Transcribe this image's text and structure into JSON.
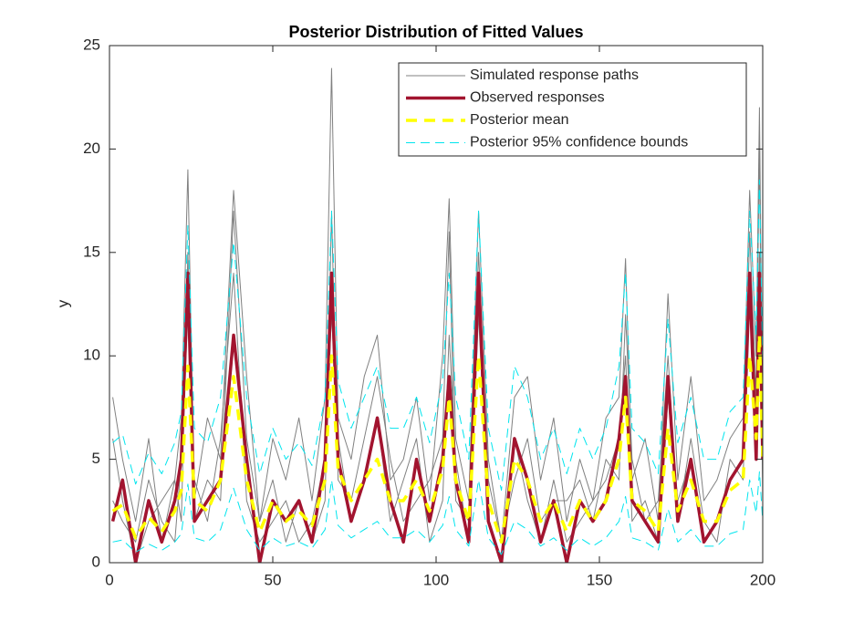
{
  "chart_data": {
    "type": "line",
    "title": "Posterior Distribution of Fitted Values",
    "ylabel": "y",
    "x": [
      1,
      4,
      8,
      12,
      16,
      20,
      22,
      24,
      26,
      30,
      34,
      38,
      42,
      46,
      50,
      54,
      58,
      62,
      66,
      68,
      70,
      74,
      78,
      82,
      86,
      90,
      94,
      98,
      102,
      104,
      106,
      110,
      113,
      116,
      120,
      124,
      128,
      132,
      136,
      140,
      144,
      148,
      152,
      156,
      158,
      160,
      164,
      168,
      171,
      174,
      178,
      182,
      186,
      190,
      194,
      196,
      198,
      199,
      200
    ],
    "series": [
      {
        "name": "Simulated response paths",
        "color": "#808080",
        "width": 1,
        "values": [
          [
            8,
            5,
            2,
            6,
            1,
            4,
            7,
            19,
            3,
            7,
            5,
            18,
            9,
            2,
            6,
            4,
            7,
            3,
            8,
            23.9,
            7,
            5,
            9,
            11,
            4,
            5,
            8,
            3,
            10,
            17.6,
            6,
            3,
            17,
            5,
            1,
            8,
            9,
            4,
            7,
            2,
            5,
            3,
            7,
            8,
            14.7,
            4,
            6,
            2,
            13,
            4,
            9,
            3,
            4,
            6,
            7,
            18,
            10,
            22,
            6
          ],
          [
            3,
            2,
            1,
            4,
            2,
            1,
            5,
            12,
            4,
            2,
            6,
            14,
            3,
            1,
            2,
            3,
            1,
            2,
            5,
            12,
            6,
            2,
            4,
            7,
            2,
            4,
            6,
            1,
            3,
            11,
            5,
            1,
            12,
            2,
            0,
            6,
            3,
            1,
            4,
            1,
            2,
            3,
            4,
            6,
            10,
            2,
            3,
            1,
            8,
            3,
            5,
            1,
            2,
            4,
            5,
            13,
            7,
            15,
            4
          ],
          [
            6,
            3,
            0,
            2,
            3,
            4,
            2,
            15,
            2,
            4,
            3,
            17,
            6,
            2,
            4,
            1,
            3,
            1,
            3,
            17,
            4,
            3,
            6,
            9,
            5,
            2,
            3,
            4,
            6,
            16,
            3,
            2,
            15,
            4,
            1,
            4,
            6,
            2,
            3,
            3,
            4,
            2,
            5,
            4,
            12,
            5,
            2,
            3,
            10,
            2,
            6,
            2,
            1,
            5,
            4,
            16,
            8,
            20,
            3
          ]
        ]
      },
      {
        "name": "Observed responses",
        "color": "#a2142f",
        "width": 3.5,
        "values": [
          2,
          4,
          0,
          3,
          1,
          3,
          5,
          14,
          2,
          3,
          4,
          11,
          5,
          0,
          3,
          2,
          3,
          1,
          5,
          14,
          5,
          2,
          4,
          7,
          3,
          1,
          5,
          2,
          5,
          9,
          4,
          1,
          14,
          2,
          0,
          6,
          4,
          1,
          3,
          0,
          3,
          2,
          3,
          6,
          9,
          3,
          2,
          1,
          9,
          2,
          5,
          1,
          2,
          4,
          5,
          14,
          5,
          14,
          5
        ]
      },
      {
        "name": "Posterior mean",
        "color": "#ffff00",
        "width": 3.5,
        "dash": "12 8",
        "values": [
          2.5,
          2.8,
          1.2,
          2.2,
          1.5,
          2.5,
          3.5,
          9.5,
          3,
          2.5,
          4,
          9,
          4,
          1.5,
          3,
          2,
          2.5,
          1.8,
          4,
          10,
          4.5,
          3,
          4,
          5,
          3,
          3,
          4,
          2.5,
          4.5,
          8,
          4,
          2,
          10,
          3,
          1,
          5,
          4,
          2,
          3,
          1.5,
          3,
          2,
          3,
          5,
          8,
          3,
          2.5,
          1.5,
          6.5,
          2.5,
          4,
          2,
          2,
          3.5,
          4,
          10,
          6,
          11,
          5
        ]
      },
      {
        "name": "Posterior 95% confidence bounds",
        "color": "#00e5ee",
        "width": 1,
        "dash": "10 6",
        "values": [
          [
            1,
            1.1,
            0.5,
            0.9,
            0.6,
            1,
            1.4,
            3.8,
            1.2,
            1,
            1.6,
            3.6,
            1.6,
            0.6,
            1.2,
            0.8,
            1,
            0.7,
            1.6,
            4,
            1.8,
            1.2,
            1.6,
            2,
            1.2,
            1.2,
            1.6,
            1,
            1.8,
            3.2,
            1.6,
            0.8,
            4,
            1.2,
            0.4,
            2,
            1.6,
            0.8,
            1.2,
            0.6,
            1.2,
            0.8,
            1.2,
            2,
            3.2,
            1.2,
            1,
            0.6,
            2.6,
            1,
            1.6,
            0.8,
            0.8,
            1.4,
            1.6,
            4,
            2.4,
            4.4,
            2
          ],
          [
            5.8,
            6.2,
            3.8,
            5.3,
            4.3,
            5.8,
            7.3,
            16.3,
            6.5,
            5.8,
            8,
            15.5,
            8,
            4.3,
            6.5,
            5,
            5.8,
            4.7,
            8,
            17,
            8.8,
            6.5,
            8,
            9.5,
            6.5,
            6.5,
            8,
            5.8,
            8.8,
            14,
            8,
            5,
            17,
            6.5,
            3.5,
            9.5,
            8,
            5,
            6.5,
            4.3,
            6.5,
            5,
            6.5,
            9.5,
            14,
            6.5,
            5.8,
            4.3,
            11.8,
            5.8,
            8,
            5,
            5,
            7.3,
            8,
            17,
            11,
            18.5,
            9.5
          ]
        ]
      }
    ],
    "xlim": [
      0,
      200
    ],
    "xticks": [
      0,
      50,
      100,
      150,
      200
    ],
    "ylim": [
      0,
      25
    ],
    "yticks": [
      0,
      5,
      10,
      15,
      20,
      25
    ],
    "legend": "northeast"
  }
}
